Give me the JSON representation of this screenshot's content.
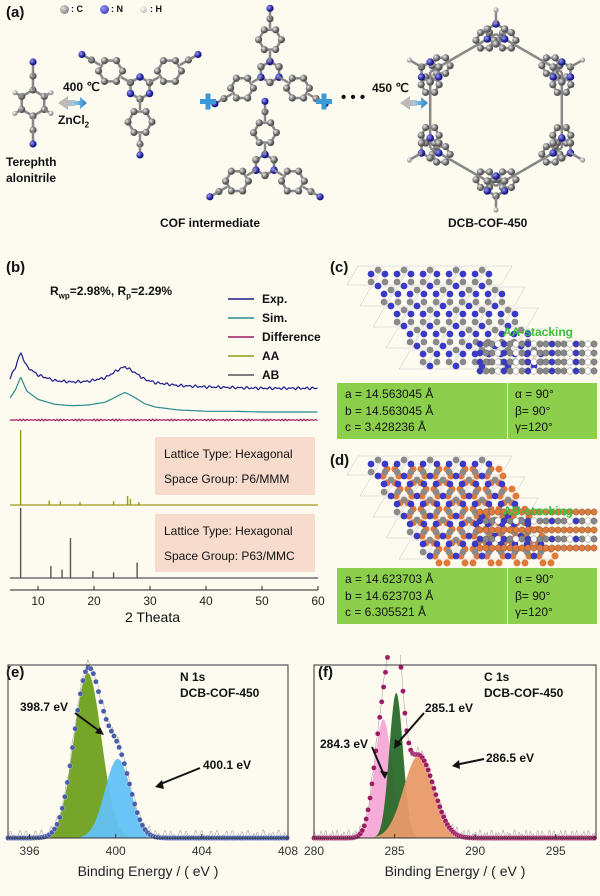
{
  "panel_a": {
    "label": "(a)",
    "legend": {
      "c": ": C",
      "n": ": N",
      "h": ": H"
    },
    "cond_left": "400 ℃",
    "cond_left_sub": "ZnCl",
    "cond_left_sub2": "2",
    "cond_right": "450 ℃",
    "monomer_line1": "Terephth",
    "monomer_line2": "alonitrile",
    "intermediate": "COF intermediate",
    "product": "DCB-COF-450",
    "dots": "• • •"
  },
  "panel_b": {
    "label": "(b)",
    "fit_text": "R",
    "rwp_sub": "wp",
    "rwp_val": "=2.98%, R",
    "rp_sub": "p",
    "rp_val": "=2.29%",
    "xlabel": "2 Theata",
    "box1_line1": "Lattice Type: Hexagonal",
    "box1_line2": "Space Group: P6/MMM",
    "box2_line1": "Lattice Type: Hexagonal",
    "box2_line2": "Space Group: P63/MMC"
  },
  "panel_c": {
    "label": "(c)",
    "stacking": "AA-stacking",
    "a": "a = 14.563045 Å",
    "b": "b = 14.563045 Å",
    "c": "c = 3.428236 Å",
    "alpha": "α = 90°",
    "beta": "β= 90°",
    "gamma": "γ=120°"
  },
  "panel_d": {
    "label": "(d)",
    "stacking": "AB-stacking",
    "a": "a = 14.623703 Å",
    "b": "b = 14.623703 Å",
    "c": "c = 6.305521 Å",
    "alpha": "α = 90°",
    "beta": "β= 90°",
    "gamma": "γ=120°"
  },
  "panel_e": {
    "label": "(e)",
    "title1": "N 1s",
    "title2": "DCB-COF-450",
    "peak1": "398.7 eV",
    "peak2": "400.1 eV"
  },
  "panel_f": {
    "label": "(f)",
    "title1": "C 1s",
    "title2": "DCB-COF-450",
    "peak1": "285.1 eV",
    "peak2": "284.3 eV",
    "peak3": "286.5 eV"
  },
  "colors": {
    "exp": "#1a1a8c",
    "sim": "#2a8a8a",
    "difference": "#9a1a5a",
    "aa": "#9a9a1a",
    "ab": "#555555",
    "lattice_green": "#8ccf4c",
    "nitrogen_blue": "#3a3ac8",
    "carbon_grey": "#8a8a8a",
    "ab_orange": "#e07a3a"
  },
  "chart_data": [
    {
      "type": "line",
      "panel": "b",
      "xlabel": "2 Theata",
      "xlim": [
        5,
        60
      ],
      "xticks": [
        10,
        20,
        30,
        40,
        50,
        60
      ],
      "series": [
        {
          "name": "Exp.",
          "x": [
            5,
            6,
            6.9,
            8,
            10,
            13,
            16,
            19,
            22,
            24,
            25.5,
            27,
            29,
            31,
            35,
            40,
            45,
            50,
            55,
            60
          ],
          "y": [
            0.55,
            0.72,
            0.92,
            0.72,
            0.6,
            0.52,
            0.5,
            0.51,
            0.56,
            0.66,
            0.72,
            0.65,
            0.54,
            0.49,
            0.45,
            0.43,
            0.42,
            0.41,
            0.41,
            0.41
          ]
        },
        {
          "name": "Sim.",
          "x": [
            5,
            6,
            6.9,
            8,
            10,
            13,
            16,
            19,
            22,
            24,
            25.5,
            27,
            29,
            31,
            35,
            40,
            45,
            50,
            55,
            60
          ],
          "y": [
            0.5,
            0.62,
            0.8,
            0.6,
            0.48,
            0.41,
            0.39,
            0.4,
            0.44,
            0.52,
            0.58,
            0.52,
            0.42,
            0.37,
            0.33,
            0.31,
            0.31,
            0.3,
            0.3,
            0.3
          ]
        },
        {
          "name": "Difference",
          "x": [
            5,
            60
          ],
          "y": [
            0,
            0
          ]
        },
        {
          "name": "AA",
          "x": [
            6.9,
            12,
            14,
            17.5,
            23.5,
            26,
            26.5,
            28
          ],
          "y": [
            1.0,
            0.06,
            0.05,
            0.04,
            0.05,
            0.12,
            0.08,
            0.04
          ]
        },
        {
          "name": "AB",
          "x": [
            6.9,
            12.3,
            14.3,
            15.8,
            19.8,
            23.5,
            27.7
          ],
          "y": [
            1.0,
            0.17,
            0.12,
            0.57,
            0.1,
            0.08,
            0.22
          ]
        }
      ]
    },
    {
      "type": "area",
      "panel": "e",
      "xlabel": "Binding Energy / ( eV )",
      "xlim": [
        395,
        408
      ],
      "xticks": [
        396,
        400,
        404,
        408
      ],
      "series": [
        {
          "name": "398.7 eV",
          "center": 398.7,
          "fwhm": 1.5,
          "height": 1.0
        },
        {
          "name": "400.1 eV",
          "center": 400.1,
          "fwhm": 1.4,
          "height": 0.48
        }
      ]
    },
    {
      "type": "area",
      "panel": "f",
      "xlabel": "Binding Energy / ( eV )",
      "xlim": [
        280,
        297.5
      ],
      "xticks": [
        280,
        285,
        290,
        295
      ],
      "series": [
        {
          "name": "284.3 eV",
          "center": 284.3,
          "fwhm": 1.3,
          "height": 0.72
        },
        {
          "name": "285.1 eV",
          "center": 285.1,
          "fwhm": 1.0,
          "height": 0.88
        },
        {
          "name": "286.5 eV",
          "center": 286.5,
          "fwhm": 2.2,
          "height": 0.5
        }
      ]
    }
  ]
}
